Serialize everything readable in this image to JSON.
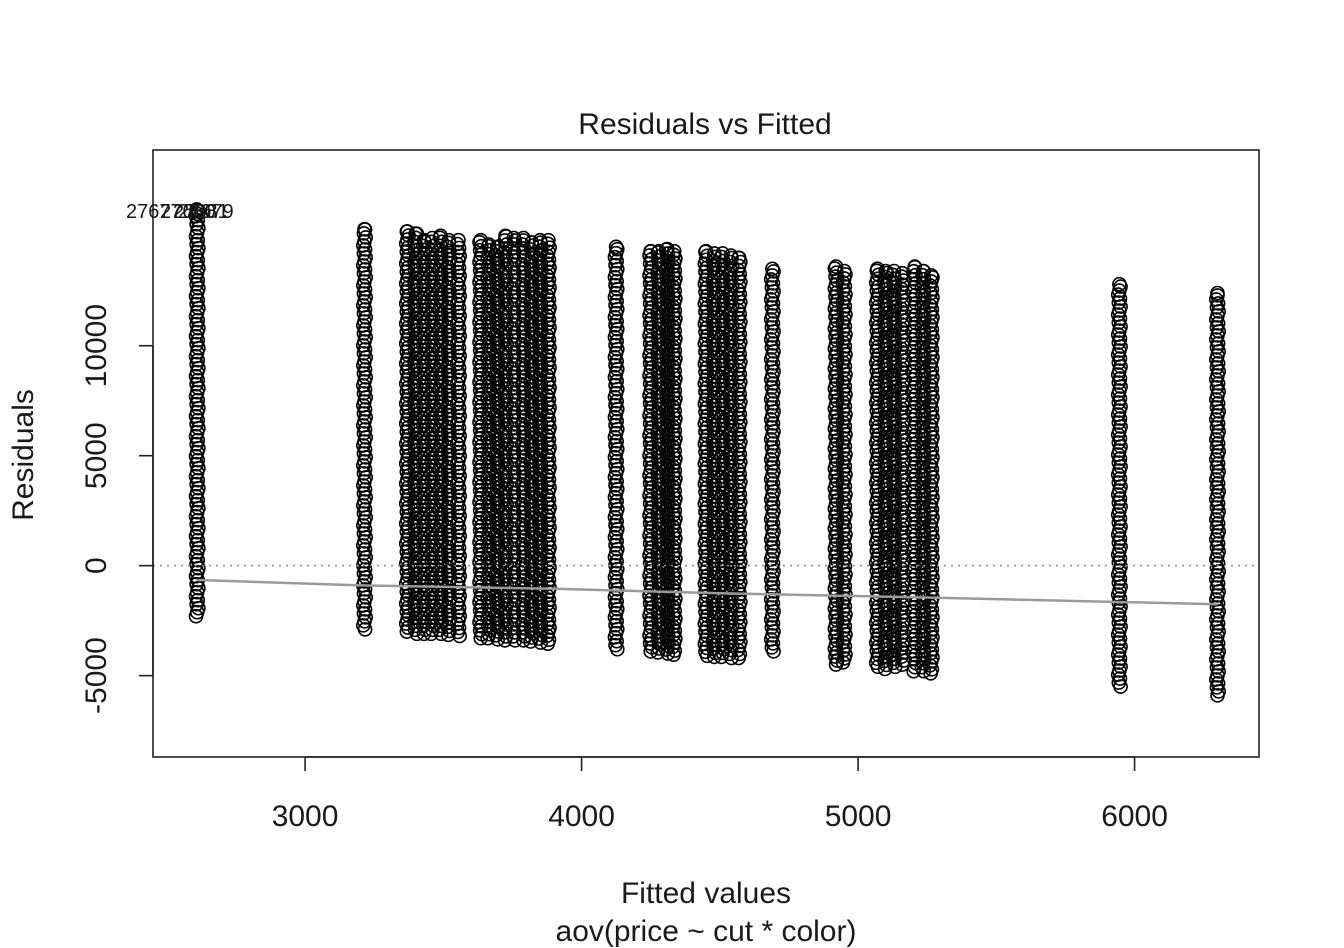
{
  "chart_data": {
    "type": "scatter",
    "title": "Residuals vs Fitted",
    "xlabel": "Fitted values",
    "sublabel": "aov(price ~ cut * color)",
    "ylabel": "Residuals",
    "xlim": [
      2450,
      6450
    ],
    "ylim": [
      -8700,
      18900
    ],
    "x_ticks": [
      3000,
      4000,
      5000,
      6000
    ],
    "x_tick_labels": [
      "3000",
      "4000",
      "5000",
      "6000"
    ],
    "y_ticks": [
      -5000,
      0,
      5000,
      10000
    ],
    "y_tick_labels": [
      "-5000",
      "0",
      "5000",
      "10000"
    ],
    "grid": false,
    "zero_reference_line": 0,
    "point_color": "#000000",
    "smooth_color": "#9a9a9a",
    "outlier_labels": [
      "27677",
      "27680",
      "27681",
      "27679"
    ],
    "outlier_points": [
      {
        "x": 2608,
        "y": 16200
      },
      {
        "x": 2612,
        "y": 16150
      },
      {
        "x": 2616,
        "y": 16100
      },
      {
        "x": 2610,
        "y": 16180
      }
    ],
    "fitted_groups": [
      {
        "x": 2610,
        "ymin": -2300,
        "ymax": 16000
      },
      {
        "x": 3215,
        "ymin": -2900,
        "ymax": 15300
      },
      {
        "x": 3370,
        "ymin": -3000,
        "ymax": 15200
      },
      {
        "x": 3400,
        "ymin": -3100,
        "ymax": 15100
      },
      {
        "x": 3430,
        "ymin": -3100,
        "ymax": 14800
      },
      {
        "x": 3460,
        "ymin": -3100,
        "ymax": 14900
      },
      {
        "x": 3490,
        "ymin": -3100,
        "ymax": 15000
      },
      {
        "x": 3520,
        "ymin": -3150,
        "ymax": 14800
      },
      {
        "x": 3555,
        "ymin": -3200,
        "ymax": 14800
      },
      {
        "x": 3635,
        "ymin": -3300,
        "ymax": 14800
      },
      {
        "x": 3665,
        "ymin": -3300,
        "ymax": 14600
      },
      {
        "x": 3695,
        "ymin": -3350,
        "ymax": 14500
      },
      {
        "x": 3725,
        "ymin": -3400,
        "ymax": 15000
      },
      {
        "x": 3755,
        "ymin": -3400,
        "ymax": 14900
      },
      {
        "x": 3790,
        "ymin": -3400,
        "ymax": 14900
      },
      {
        "x": 3820,
        "ymin": -3450,
        "ymax": 14700
      },
      {
        "x": 3850,
        "ymin": -3500,
        "ymax": 14800
      },
      {
        "x": 3880,
        "ymin": -3550,
        "ymax": 14800
      },
      {
        "x": 4125,
        "ymin": -3800,
        "ymax": 14500
      },
      {
        "x": 4250,
        "ymin": -3900,
        "ymax": 14300
      },
      {
        "x": 4280,
        "ymin": -3950,
        "ymax": 14300
      },
      {
        "x": 4310,
        "ymin": -4000,
        "ymax": 14400
      },
      {
        "x": 4335,
        "ymin": -4050,
        "ymax": 14300
      },
      {
        "x": 4450,
        "ymin": -4100,
        "ymax": 14300
      },
      {
        "x": 4480,
        "ymin": -4150,
        "ymax": 14200
      },
      {
        "x": 4510,
        "ymin": -4150,
        "ymax": 14200
      },
      {
        "x": 4540,
        "ymin": -4200,
        "ymax": 14100
      },
      {
        "x": 4570,
        "ymin": -4200,
        "ymax": 14000
      },
      {
        "x": 4690,
        "ymin": -3900,
        "ymax": 13500
      },
      {
        "x": 4920,
        "ymin": -4500,
        "ymax": 13600
      },
      {
        "x": 4950,
        "ymin": -4400,
        "ymax": 13400
      },
      {
        "x": 5070,
        "ymin": -4600,
        "ymax": 13500
      },
      {
        "x": 5100,
        "ymin": -4700,
        "ymax": 13400
      },
      {
        "x": 5130,
        "ymin": -4600,
        "ymax": 13400
      },
      {
        "x": 5160,
        "ymin": -4500,
        "ymax": 13300
      },
      {
        "x": 5205,
        "ymin": -4800,
        "ymax": 13600
      },
      {
        "x": 5235,
        "ymin": -4800,
        "ymax": 13400
      },
      {
        "x": 5265,
        "ymin": -4900,
        "ymax": 13200
      },
      {
        "x": 5945,
        "ymin": -5500,
        "ymax": 12800
      },
      {
        "x": 6300,
        "ymin": -5900,
        "ymax": 12400
      }
    ],
    "smooth_line": [
      {
        "x": 2610,
        "y": -650
      },
      {
        "x": 3215,
        "y": -900
      },
      {
        "x": 3900,
        "y": -1050
      },
      {
        "x": 4500,
        "y": -1250
      },
      {
        "x": 5265,
        "y": -1450
      },
      {
        "x": 5945,
        "y": -1650
      },
      {
        "x": 6300,
        "y": -1750
      }
    ]
  }
}
